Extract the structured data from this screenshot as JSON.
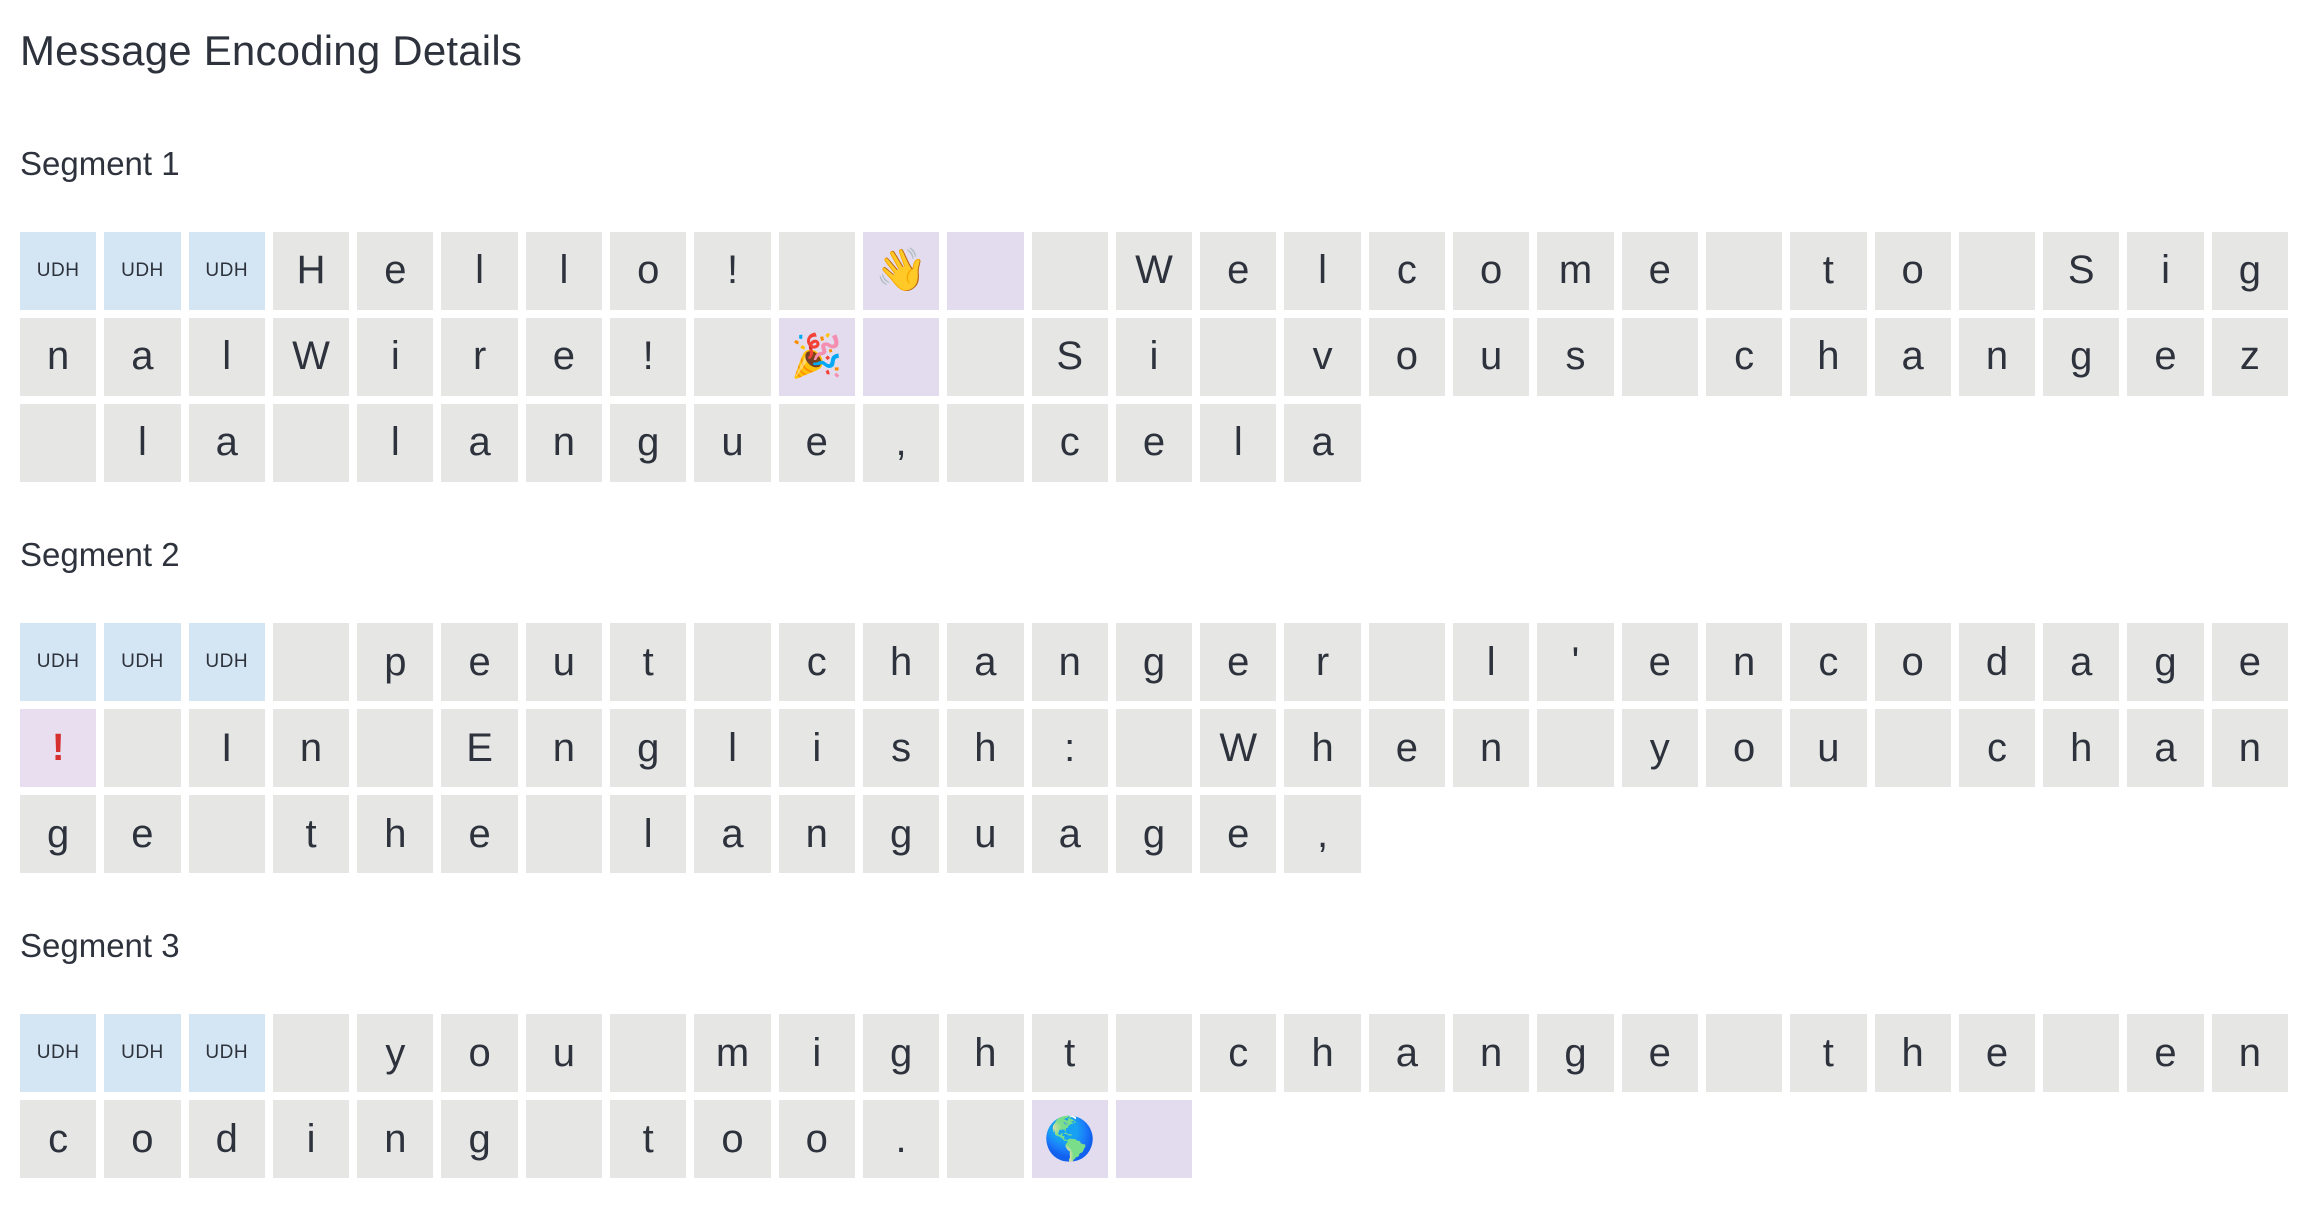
{
  "page": {
    "title": "Message Encoding Details"
  },
  "colors": {
    "text": "#2d323c",
    "char_bg": "#e6e7e5",
    "udh_bg": "#d4e6f3",
    "special_bg": "#e3dcee",
    "warn_bg": "#e9def0",
    "warn_red": "#d62f2f"
  },
  "legend": {
    "udh_label": "UDH",
    "warn_glyph": "!"
  },
  "segments": [
    {
      "label": "Segment 1",
      "cells": [
        [
          "udh",
          "UDH"
        ],
        [
          "udh",
          "UDH"
        ],
        [
          "udh",
          "UDH"
        ],
        [
          "ch",
          "H"
        ],
        [
          "ch",
          "e"
        ],
        [
          "ch",
          "l"
        ],
        [
          "ch",
          "l"
        ],
        [
          "ch",
          "o"
        ],
        [
          "ch",
          "!"
        ],
        [
          "ch",
          " "
        ],
        [
          "emoji",
          "👋"
        ],
        [
          "cont",
          ""
        ],
        [
          "ch",
          " "
        ],
        [
          "ch",
          "W"
        ],
        [
          "ch",
          "e"
        ],
        [
          "ch",
          "l"
        ],
        [
          "ch",
          "c"
        ],
        [
          "ch",
          "o"
        ],
        [
          "ch",
          "m"
        ],
        [
          "ch",
          "e"
        ],
        [
          "ch",
          " "
        ],
        [
          "ch",
          "t"
        ],
        [
          "ch",
          "o"
        ],
        [
          "ch",
          " "
        ],
        [
          "ch",
          "S"
        ],
        [
          "ch",
          "i"
        ],
        [
          "ch",
          "g"
        ],
        [
          "ch",
          "n"
        ],
        [
          "ch",
          "a"
        ],
        [
          "ch",
          "l"
        ],
        [
          "ch",
          "W"
        ],
        [
          "ch",
          "i"
        ],
        [
          "ch",
          "r"
        ],
        [
          "ch",
          "e"
        ],
        [
          "ch",
          "!"
        ],
        [
          "ch",
          " "
        ],
        [
          "emoji",
          "🎉"
        ],
        [
          "cont",
          ""
        ],
        [
          "ch",
          " "
        ],
        [
          "ch",
          "S"
        ],
        [
          "ch",
          "i"
        ],
        [
          "ch",
          " "
        ],
        [
          "ch",
          "v"
        ],
        [
          "ch",
          "o"
        ],
        [
          "ch",
          "u"
        ],
        [
          "ch",
          "s"
        ],
        [
          "ch",
          " "
        ],
        [
          "ch",
          "c"
        ],
        [
          "ch",
          "h"
        ],
        [
          "ch",
          "a"
        ],
        [
          "ch",
          "n"
        ],
        [
          "ch",
          "g"
        ],
        [
          "ch",
          "e"
        ],
        [
          "ch",
          "z"
        ],
        [
          "ch",
          " "
        ],
        [
          "ch",
          "l"
        ],
        [
          "ch",
          "a"
        ],
        [
          "ch",
          " "
        ],
        [
          "ch",
          "l"
        ],
        [
          "ch",
          "a"
        ],
        [
          "ch",
          "n"
        ],
        [
          "ch",
          "g"
        ],
        [
          "ch",
          "u"
        ],
        [
          "ch",
          "e"
        ],
        [
          "ch",
          ","
        ],
        [
          "ch",
          " "
        ],
        [
          "ch",
          "c"
        ],
        [
          "ch",
          "e"
        ],
        [
          "ch",
          "l"
        ],
        [
          "ch",
          "a"
        ]
      ]
    },
    {
      "label": "Segment 2",
      "cells": [
        [
          "udh",
          "UDH"
        ],
        [
          "udh",
          "UDH"
        ],
        [
          "udh",
          "UDH"
        ],
        [
          "ch",
          " "
        ],
        [
          "ch",
          "p"
        ],
        [
          "ch",
          "e"
        ],
        [
          "ch",
          "u"
        ],
        [
          "ch",
          "t"
        ],
        [
          "ch",
          " "
        ],
        [
          "ch",
          "c"
        ],
        [
          "ch",
          "h"
        ],
        [
          "ch",
          "a"
        ],
        [
          "ch",
          "n"
        ],
        [
          "ch",
          "g"
        ],
        [
          "ch",
          "e"
        ],
        [
          "ch",
          "r"
        ],
        [
          "ch",
          " "
        ],
        [
          "ch",
          "l"
        ],
        [
          "ch",
          "'"
        ],
        [
          "ch",
          "e"
        ],
        [
          "ch",
          "n"
        ],
        [
          "ch",
          "c"
        ],
        [
          "ch",
          "o"
        ],
        [
          "ch",
          "d"
        ],
        [
          "ch",
          "a"
        ],
        [
          "ch",
          "g"
        ],
        [
          "ch",
          "e"
        ],
        [
          "warn",
          "!"
        ],
        [
          "ch",
          " "
        ],
        [
          "ch",
          "I"
        ],
        [
          "ch",
          "n"
        ],
        [
          "ch",
          " "
        ],
        [
          "ch",
          "E"
        ],
        [
          "ch",
          "n"
        ],
        [
          "ch",
          "g"
        ],
        [
          "ch",
          "l"
        ],
        [
          "ch",
          "i"
        ],
        [
          "ch",
          "s"
        ],
        [
          "ch",
          "h"
        ],
        [
          "ch",
          ":"
        ],
        [
          "ch",
          " "
        ],
        [
          "ch",
          "W"
        ],
        [
          "ch",
          "h"
        ],
        [
          "ch",
          "e"
        ],
        [
          "ch",
          "n"
        ],
        [
          "ch",
          " "
        ],
        [
          "ch",
          "y"
        ],
        [
          "ch",
          "o"
        ],
        [
          "ch",
          "u"
        ],
        [
          "ch",
          " "
        ],
        [
          "ch",
          "c"
        ],
        [
          "ch",
          "h"
        ],
        [
          "ch",
          "a"
        ],
        [
          "ch",
          "n"
        ],
        [
          "ch",
          "g"
        ],
        [
          "ch",
          "e"
        ],
        [
          "ch",
          " "
        ],
        [
          "ch",
          "t"
        ],
        [
          "ch",
          "h"
        ],
        [
          "ch",
          "e"
        ],
        [
          "ch",
          " "
        ],
        [
          "ch",
          "l"
        ],
        [
          "ch",
          "a"
        ],
        [
          "ch",
          "n"
        ],
        [
          "ch",
          "g"
        ],
        [
          "ch",
          "u"
        ],
        [
          "ch",
          "a"
        ],
        [
          "ch",
          "g"
        ],
        [
          "ch",
          "e"
        ],
        [
          "ch",
          ","
        ]
      ]
    },
    {
      "label": "Segment 3",
      "cells": [
        [
          "udh",
          "UDH"
        ],
        [
          "udh",
          "UDH"
        ],
        [
          "udh",
          "UDH"
        ],
        [
          "ch",
          " "
        ],
        [
          "ch",
          "y"
        ],
        [
          "ch",
          "o"
        ],
        [
          "ch",
          "u"
        ],
        [
          "ch",
          " "
        ],
        [
          "ch",
          "m"
        ],
        [
          "ch",
          "i"
        ],
        [
          "ch",
          "g"
        ],
        [
          "ch",
          "h"
        ],
        [
          "ch",
          "t"
        ],
        [
          "ch",
          " "
        ],
        [
          "ch",
          "c"
        ],
        [
          "ch",
          "h"
        ],
        [
          "ch",
          "a"
        ],
        [
          "ch",
          "n"
        ],
        [
          "ch",
          "g"
        ],
        [
          "ch",
          "e"
        ],
        [
          "ch",
          " "
        ],
        [
          "ch",
          "t"
        ],
        [
          "ch",
          "h"
        ],
        [
          "ch",
          "e"
        ],
        [
          "ch",
          " "
        ],
        [
          "ch",
          "e"
        ],
        [
          "ch",
          "n"
        ],
        [
          "ch",
          "c"
        ],
        [
          "ch",
          "o"
        ],
        [
          "ch",
          "d"
        ],
        [
          "ch",
          "i"
        ],
        [
          "ch",
          "n"
        ],
        [
          "ch",
          "g"
        ],
        [
          "ch",
          " "
        ],
        [
          "ch",
          "t"
        ],
        [
          "ch",
          "o"
        ],
        [
          "ch",
          "o"
        ],
        [
          "ch",
          "."
        ],
        [
          "ch",
          " "
        ],
        [
          "emoji",
          "🌎"
        ],
        [
          "cont",
          ""
        ]
      ]
    }
  ]
}
